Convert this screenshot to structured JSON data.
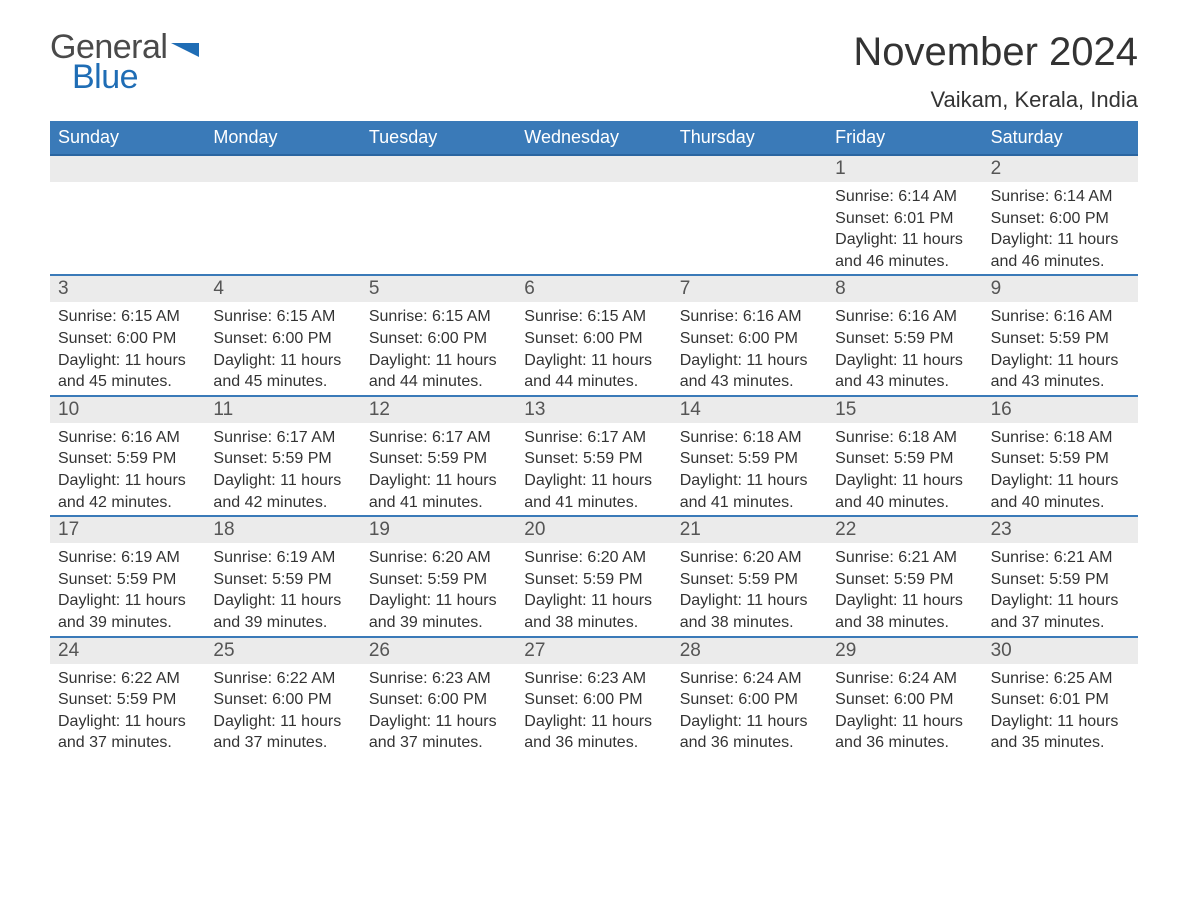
{
  "brand": {
    "part1": "General",
    "part2": "Blue"
  },
  "title": "November 2024",
  "location": "Vaikam, Kerala, India",
  "colors": {
    "header_bg": "#3a7ab8",
    "header_text": "#ffffff",
    "week_border": "#3a7ab8",
    "daynum_bg": "#ebebeb",
    "body_text": "#333333",
    "brand_gray": "#4a4a4a",
    "brand_blue": "#1f6db5"
  },
  "dayHeaders": [
    "Sunday",
    "Monday",
    "Tuesday",
    "Wednesday",
    "Thursday",
    "Friday",
    "Saturday"
  ],
  "weeks": [
    [
      null,
      null,
      null,
      null,
      null,
      {
        "n": "1",
        "sr": "6:14 AM",
        "ss": "6:01 PM",
        "dl": "11 hours and 46 minutes."
      },
      {
        "n": "2",
        "sr": "6:14 AM",
        "ss": "6:00 PM",
        "dl": "11 hours and 46 minutes."
      }
    ],
    [
      {
        "n": "3",
        "sr": "6:15 AM",
        "ss": "6:00 PM",
        "dl": "11 hours and 45 minutes."
      },
      {
        "n": "4",
        "sr": "6:15 AM",
        "ss": "6:00 PM",
        "dl": "11 hours and 45 minutes."
      },
      {
        "n": "5",
        "sr": "6:15 AM",
        "ss": "6:00 PM",
        "dl": "11 hours and 44 minutes."
      },
      {
        "n": "6",
        "sr": "6:15 AM",
        "ss": "6:00 PM",
        "dl": "11 hours and 44 minutes."
      },
      {
        "n": "7",
        "sr": "6:16 AM",
        "ss": "6:00 PM",
        "dl": "11 hours and 43 minutes."
      },
      {
        "n": "8",
        "sr": "6:16 AM",
        "ss": "5:59 PM",
        "dl": "11 hours and 43 minutes."
      },
      {
        "n": "9",
        "sr": "6:16 AM",
        "ss": "5:59 PM",
        "dl": "11 hours and 43 minutes."
      }
    ],
    [
      {
        "n": "10",
        "sr": "6:16 AM",
        "ss": "5:59 PM",
        "dl": "11 hours and 42 minutes."
      },
      {
        "n": "11",
        "sr": "6:17 AM",
        "ss": "5:59 PM",
        "dl": "11 hours and 42 minutes."
      },
      {
        "n": "12",
        "sr": "6:17 AM",
        "ss": "5:59 PM",
        "dl": "11 hours and 41 minutes."
      },
      {
        "n": "13",
        "sr": "6:17 AM",
        "ss": "5:59 PM",
        "dl": "11 hours and 41 minutes."
      },
      {
        "n": "14",
        "sr": "6:18 AM",
        "ss": "5:59 PM",
        "dl": "11 hours and 41 minutes."
      },
      {
        "n": "15",
        "sr": "6:18 AM",
        "ss": "5:59 PM",
        "dl": "11 hours and 40 minutes."
      },
      {
        "n": "16",
        "sr": "6:18 AM",
        "ss": "5:59 PM",
        "dl": "11 hours and 40 minutes."
      }
    ],
    [
      {
        "n": "17",
        "sr": "6:19 AM",
        "ss": "5:59 PM",
        "dl": "11 hours and 39 minutes."
      },
      {
        "n": "18",
        "sr": "6:19 AM",
        "ss": "5:59 PM",
        "dl": "11 hours and 39 minutes."
      },
      {
        "n": "19",
        "sr": "6:20 AM",
        "ss": "5:59 PM",
        "dl": "11 hours and 39 minutes."
      },
      {
        "n": "20",
        "sr": "6:20 AM",
        "ss": "5:59 PM",
        "dl": "11 hours and 38 minutes."
      },
      {
        "n": "21",
        "sr": "6:20 AM",
        "ss": "5:59 PM",
        "dl": "11 hours and 38 minutes."
      },
      {
        "n": "22",
        "sr": "6:21 AM",
        "ss": "5:59 PM",
        "dl": "11 hours and 38 minutes."
      },
      {
        "n": "23",
        "sr": "6:21 AM",
        "ss": "5:59 PM",
        "dl": "11 hours and 37 minutes."
      }
    ],
    [
      {
        "n": "24",
        "sr": "6:22 AM",
        "ss": "5:59 PM",
        "dl": "11 hours and 37 minutes."
      },
      {
        "n": "25",
        "sr": "6:22 AM",
        "ss": "6:00 PM",
        "dl": "11 hours and 37 minutes."
      },
      {
        "n": "26",
        "sr": "6:23 AM",
        "ss": "6:00 PM",
        "dl": "11 hours and 37 minutes."
      },
      {
        "n": "27",
        "sr": "6:23 AM",
        "ss": "6:00 PM",
        "dl": "11 hours and 36 minutes."
      },
      {
        "n": "28",
        "sr": "6:24 AM",
        "ss": "6:00 PM",
        "dl": "11 hours and 36 minutes."
      },
      {
        "n": "29",
        "sr": "6:24 AM",
        "ss": "6:00 PM",
        "dl": "11 hours and 36 minutes."
      },
      {
        "n": "30",
        "sr": "6:25 AM",
        "ss": "6:01 PM",
        "dl": "11 hours and 35 minutes."
      }
    ]
  ],
  "labels": {
    "sunrise": "Sunrise: ",
    "sunset": "Sunset: ",
    "daylight": "Daylight: "
  }
}
